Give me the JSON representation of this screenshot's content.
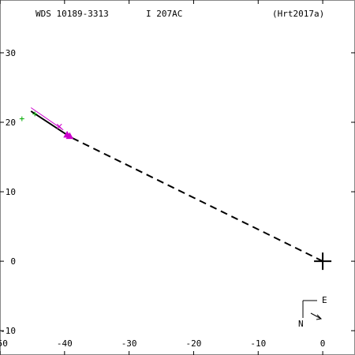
{
  "header": {
    "wds_id": "WDS 10189-3313",
    "component": "I   207AC",
    "reference": "(Hrt2017a)"
  },
  "chart_data": {
    "type": "scatter",
    "title": "",
    "xlabel": "",
    "ylabel": "",
    "xlim": [
      -50,
      5
    ],
    "ylim": [
      -13.5,
      37.6
    ],
    "x_ticks": [
      -50,
      -40,
      -30,
      -20,
      -10,
      0
    ],
    "y_ticks": [
      -10,
      0,
      10,
      20,
      30
    ],
    "x_tick_labels": [
      "-50",
      "-40",
      "-30",
      "-20",
      "-10",
      "0"
    ],
    "y_tick_labels": [
      "-10",
      "0",
      "10",
      "20",
      "30"
    ],
    "grid": false,
    "primary_star": {
      "x": 0,
      "y": 0,
      "marker": "plus"
    },
    "separation_line": {
      "from": [
        0,
        0
      ],
      "to": [
        -39.6,
        18.1
      ],
      "style": "dashed",
      "color": "#000000"
    },
    "orbit_segment": {
      "from": [
        -45.2,
        21.6
      ],
      "to": [
        -39.8,
        18.3
      ],
      "color": "#000000"
    },
    "magenta_track": {
      "from": [
        -45.2,
        22.1
      ],
      "to": [
        -40.2,
        18.9
      ],
      "color": "#cc00cc"
    },
    "measurements": [
      {
        "x": -46.6,
        "y": 20.5,
        "marker": "plus",
        "color": "#00aa00"
      },
      {
        "x": -44.6,
        "y": 21.2,
        "marker": "plus",
        "color": "#00aa00"
      },
      {
        "x": -40.8,
        "y": 19.4,
        "marker": "x",
        "color": "#cc00cc"
      },
      {
        "x": -39.6,
        "y": 18.2,
        "marker": "triangle",
        "color": "#cc00cc"
      },
      {
        "x": -39.2,
        "y": 18.0,
        "marker": "triangle",
        "color": "#cc00cc"
      }
    ],
    "compass": {
      "north_label": "N",
      "east_label": "E"
    }
  }
}
